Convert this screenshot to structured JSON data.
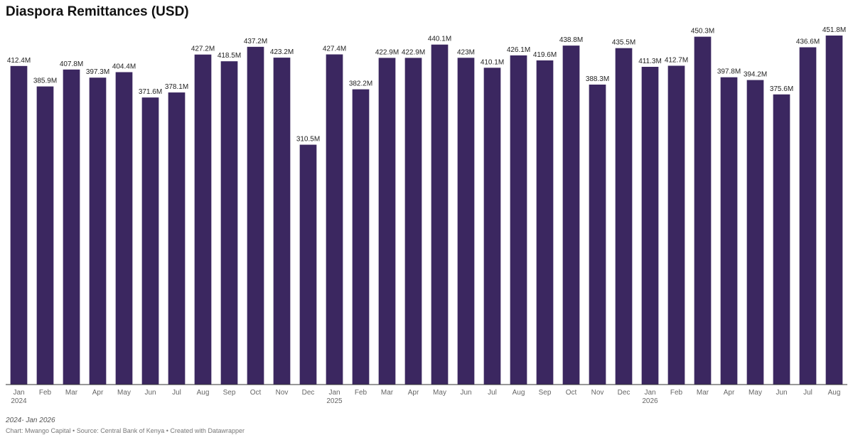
{
  "chart_data": {
    "type": "bar",
    "title": "Diaspora Remittances (USD)",
    "xlabel": "",
    "ylabel": "",
    "ylim": [
      0,
      460
    ],
    "grid": false,
    "color": "#3b2760",
    "categories": [
      "Jan 2024",
      "Feb",
      "Mar",
      "Apr",
      "May",
      "Jun",
      "Jul",
      "Aug",
      "Sep",
      "Oct",
      "Nov",
      "Dec",
      "Jan 2025",
      "Feb",
      "Mar",
      "Apr",
      "May",
      "Jun",
      "Jul",
      "Aug",
      "Sep",
      "Oct",
      "Nov",
      "Dec",
      "Jan 2026",
      "Feb",
      "Mar",
      "Apr",
      "May",
      "Jun",
      "Jul",
      "Aug"
    ],
    "tick_labels": [
      [
        "Jan",
        "2024"
      ],
      [
        "Feb"
      ],
      [
        "Mar"
      ],
      [
        "Apr"
      ],
      [
        "May"
      ],
      [
        "Jun"
      ],
      [
        "Jul"
      ],
      [
        "Aug"
      ],
      [
        "Sep"
      ],
      [
        "Oct"
      ],
      [
        "Nov"
      ],
      [
        "Dec"
      ],
      [
        "Jan",
        "2025"
      ],
      [
        "Feb"
      ],
      [
        "Mar"
      ],
      [
        "Apr"
      ],
      [
        "May"
      ],
      [
        "Jun"
      ],
      [
        "Jul"
      ],
      [
        "Aug"
      ],
      [
        "Sep"
      ],
      [
        "Oct"
      ],
      [
        "Nov"
      ],
      [
        "Dec"
      ],
      [
        "Jan",
        "2026"
      ],
      [
        "Feb"
      ],
      [
        "Mar"
      ],
      [
        "Apr"
      ],
      [
        "May"
      ],
      [
        "Jun"
      ],
      [
        "Jul"
      ],
      [
        "Aug"
      ]
    ],
    "values": [
      412.4,
      385.9,
      407.8,
      397.3,
      404.4,
      371.6,
      378.1,
      427.2,
      418.5,
      437.2,
      423.2,
      310.5,
      427.4,
      382.2,
      422.9,
      422.9,
      440.1,
      423,
      410.1,
      426.1,
      419.6,
      438.8,
      388.3,
      435.5,
      411.3,
      412.7,
      450.3,
      397.8,
      394.2,
      375.6,
      436.6,
      451.8
    ],
    "data_labels": [
      "412.4M",
      "385.9M",
      "407.8M",
      "397.3M",
      "404.4M",
      "371.6M",
      "378.1M",
      "427.2M",
      "418.5M",
      "437.2M",
      "423.2M",
      "310.5M",
      "427.4M",
      "382.2M",
      "422.9M",
      "422.9M",
      "440.1M",
      "423M",
      "410.1M",
      "426.1M",
      "419.6M",
      "438.8M",
      "388.3M",
      "435.5M",
      "411.3M",
      "412.7M",
      "450.3M",
      "397.8M",
      "394.2M",
      "375.6M",
      "436.6M",
      "451.8M"
    ]
  },
  "note": "2024- Jan 2026",
  "footer": "Chart: Mwango Capital • Source: Central Bank of Kenya • Created with Datawrapper"
}
